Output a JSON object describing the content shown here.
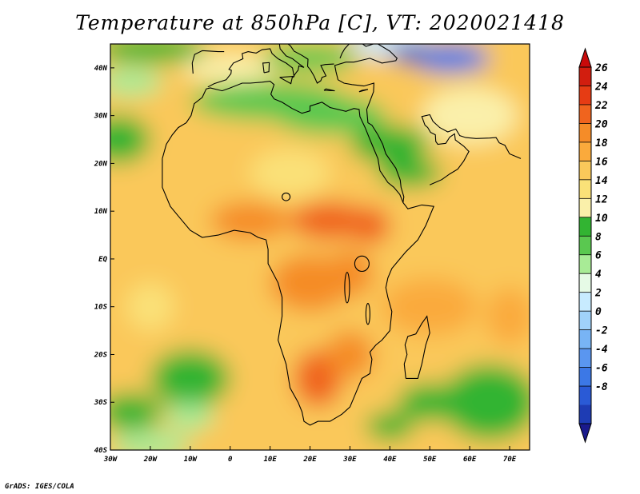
{
  "title": "Temperature at 850hPa [C], VT: 2020021418",
  "credit": "GrADS: IGES/COLA",
  "colors": {
    "background": "#ffffff",
    "coastline": "#000000",
    "frame": "#000000",
    "bin_colors": [
      "#1a1a8c",
      "#1e3cb4",
      "#2a5ad6",
      "#3c78e6",
      "#5a96f0",
      "#78b4f5",
      "#a0d2fa",
      "#c8ebff",
      "#e6fae6",
      "#a8eb96",
      "#5ac850",
      "#32b432",
      "#faf0aa",
      "#fae178",
      "#fac85a",
      "#faaa3c",
      "#f58c28",
      "#f0641e",
      "#e63c14",
      "#d21e0f",
      "#c80a0a"
    ]
  },
  "chart_data": {
    "type": "heatmap",
    "title": "Temperature at 850hPa [C], VT: 2020021418",
    "x_ticks": [
      "30W",
      "20W",
      "10W",
      "0",
      "10E",
      "20E",
      "30E",
      "40E",
      "50E",
      "60E",
      "70E"
    ],
    "x_tick_values": [
      -30,
      -20,
      -10,
      0,
      10,
      20,
      30,
      40,
      50,
      60,
      70
    ],
    "y_ticks": [
      "40N",
      "30N",
      "20N",
      "10N",
      "EQ",
      "10S",
      "20S",
      "30S",
      "40S"
    ],
    "y_tick_values": [
      40,
      30,
      20,
      10,
      0,
      -10,
      -20,
      -30,
      -40
    ],
    "lon_range": [
      -30,
      75
    ],
    "lat_range": [
      -40,
      45
    ],
    "colorbar_labels": [
      "26",
      "24",
      "22",
      "20",
      "18",
      "16",
      "14",
      "12",
      "10",
      "8",
      "6",
      "4",
      "2",
      "0",
      "-2",
      "-4",
      "-6",
      "-8"
    ],
    "colorbar_values": [
      26,
      24,
      22,
      20,
      18,
      16,
      14,
      12,
      10,
      8,
      6,
      4,
      2,
      0,
      -2,
      -4,
      -6,
      -8
    ],
    "grid": false,
    "colorbar_placement": "right"
  }
}
